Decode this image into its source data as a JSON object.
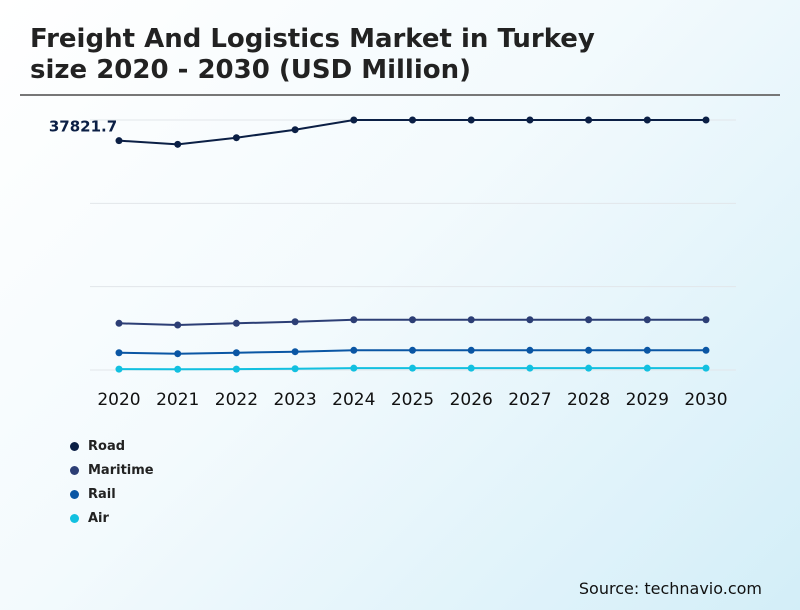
{
  "title_line1": "Freight And Logistics Market in Turkey",
  "title_line2": "size 2020 - 2030 (USD Million)",
  "source": "Source: technavio.com",
  "chart_data": {
    "type": "line",
    "title": "Freight And Logistics Market in Turkey size 2020 - 2030 (USD Million)",
    "categories": [
      "2020",
      "2021",
      "2022",
      "2023",
      "2024",
      "2025",
      "2026",
      "2027",
      "2028",
      "2029",
      "2030"
    ],
    "ylim": [
      0,
      41230
    ],
    "grid": true,
    "legend_position": "bottom-left",
    "annotations": [
      {
        "series": "Road",
        "x": "2020",
        "text": "37821.7"
      }
    ],
    "series": [
      {
        "name": "Road",
        "color": "#0b1f45",
        "values": [
          37821.7,
          37220,
          38310,
          39630,
          41230,
          41230,
          41230,
          41230,
          41230,
          41230,
          41230
        ]
      },
      {
        "name": "Maritime",
        "color": "#2c3e75",
        "values": [
          7700,
          7420,
          7700,
          7960,
          8290,
          8290,
          8290,
          8290,
          8290,
          8290,
          8290
        ]
      },
      {
        "name": "Rail",
        "color": "#0a56a4",
        "values": [
          2850,
          2690,
          2850,
          3020,
          3250,
          3250,
          3250,
          3250,
          3250,
          3250,
          3250
        ]
      },
      {
        "name": "Air",
        "color": "#12c0e0",
        "values": [
          150,
          120,
          150,
          200,
          300,
          300,
          300,
          300,
          300,
          300,
          300
        ]
      }
    ]
  }
}
